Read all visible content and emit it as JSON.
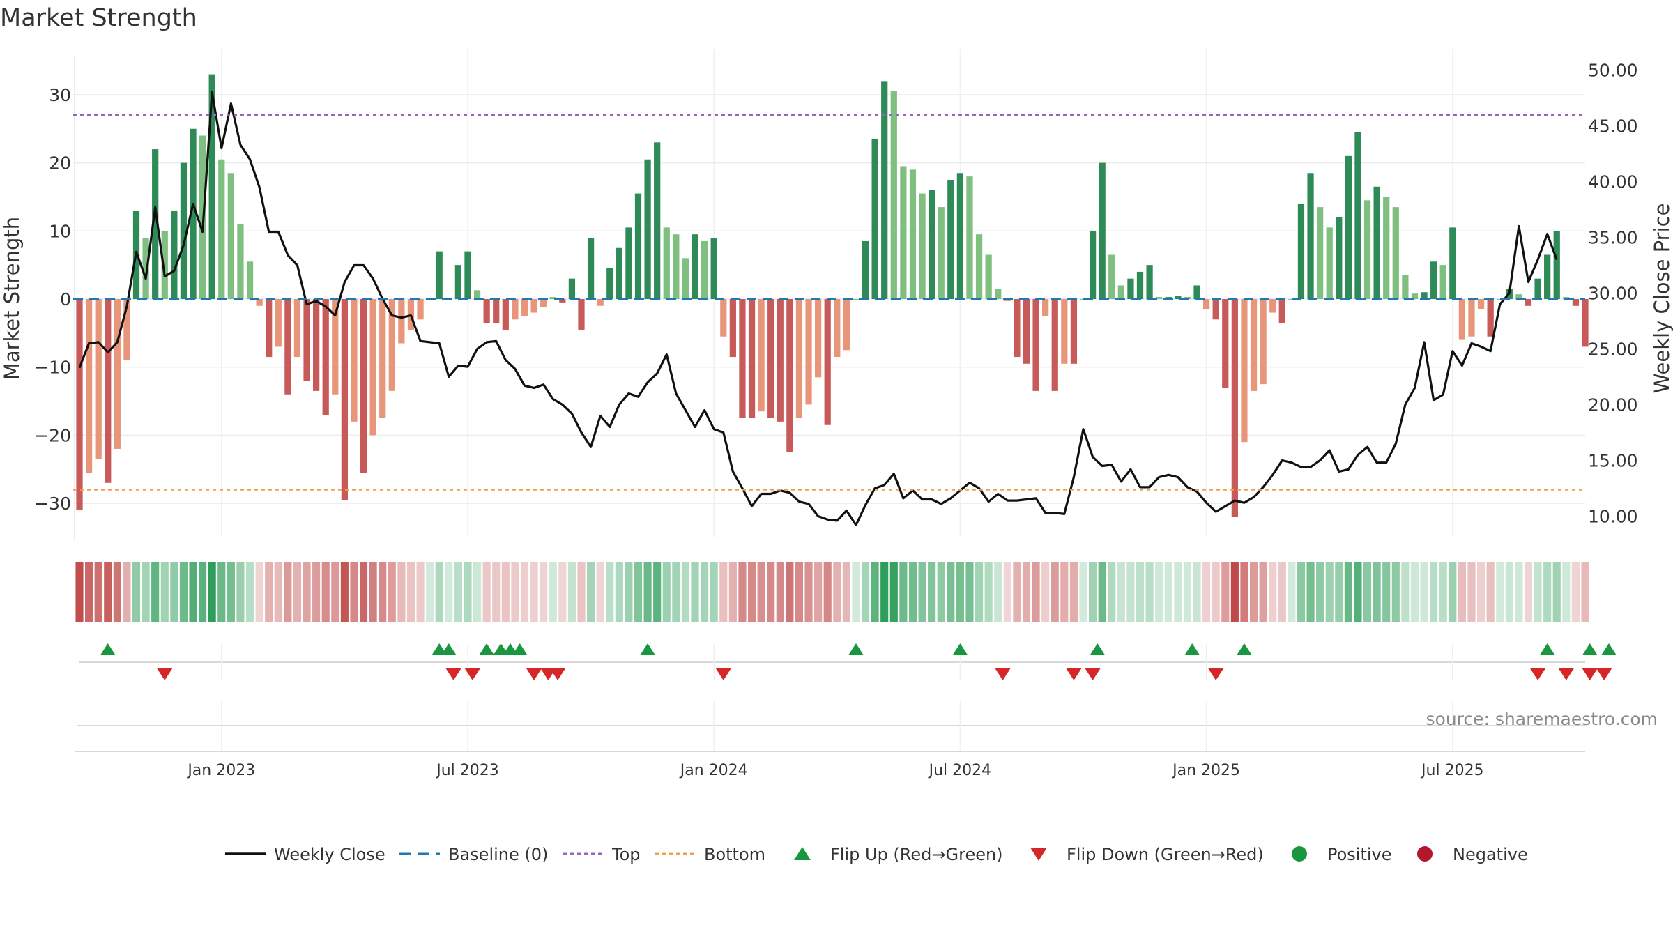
{
  "title": "Market Strength",
  "source": "source: sharemaestro.com",
  "colors": {
    "green_strong": "#2e8b57",
    "green_light": "#7fbf7f",
    "red_strong": "#c85a5a",
    "red_light": "#e8967a",
    "close_line": "#111111",
    "baseline": "#1f77b4",
    "top_line": "#9467bd",
    "bottom_line": "#f0a04b",
    "flip_up": "#1a9641",
    "flip_down": "#d62728",
    "positive": "#1a9641",
    "negative": "#b2182b"
  },
  "chart_data": {
    "type": "bar",
    "title": "Market Strength",
    "xlabel": "",
    "ylabel": "Market Strength",
    "y2label": "Weekly Close Price",
    "ylim": [
      -35,
      36
    ],
    "y2lim": [
      7.5,
      50.5
    ],
    "y_ticks": [
      30,
      20,
      10,
      0,
      -10,
      -20,
      -30
    ],
    "y_tick_labels": [
      "30",
      "20",
      "10",
      "0",
      "−10",
      "−20",
      "−30"
    ],
    "y2_ticks": [
      50,
      45,
      40,
      35,
      30,
      25,
      20,
      15,
      10
    ],
    "y2_tick_labels": [
      "50.00",
      "45.00",
      "40.00",
      "35.00",
      "30.00",
      "25.00",
      "20.00",
      "15.00",
      "10.00"
    ],
    "x_tick_labels": [
      "Jan 2023",
      "Jul 2023",
      "Jan 2024",
      "Jul 2024",
      "Jan 2025",
      "Jul 2025"
    ],
    "x_tick_weeks": [
      15,
      41,
      67,
      93,
      119,
      145
    ],
    "top_level": 27,
    "bottom_level": -28,
    "grid": true,
    "legend_position": "bottom",
    "legend": [
      "Weekly Close",
      "Baseline (0)",
      "Top",
      "Bottom",
      "Flip Up (Red→Green)",
      "Flip Down (Green→Red)",
      "Positive",
      "Negative"
    ],
    "series": [
      {
        "name": "Market Strength",
        "values": [
          -31,
          -25.5,
          -23.5,
          -27,
          -22,
          -9,
          13,
          9,
          22,
          10,
          13,
          20,
          25,
          24,
          33,
          20.5,
          18.5,
          11,
          5.5,
          -1,
          -8.5,
          -7,
          -14,
          -8.5,
          -12,
          -13.5,
          -17,
          -14,
          -29.5,
          -18,
          -25.5,
          -20,
          -17.5,
          -13.5,
          -6.5,
          -4.5,
          -3,
          0,
          7,
          0,
          5,
          7,
          1.3,
          -3.5,
          -3.5,
          -4.5,
          -3,
          -2.5,
          -2,
          -1.2,
          0.3,
          -0.5,
          3,
          -4.5,
          9,
          -1,
          4.5,
          7.5,
          10.5,
          15.5,
          20.5,
          23,
          10.5,
          9.5,
          6,
          9.5,
          8.5,
          9,
          -5.5,
          -8.5,
          -17.5,
          -17.5,
          -16.5,
          -17.5,
          -18,
          -22.5,
          -17.5,
          -15.5,
          -11.5,
          -18.5,
          -8.5,
          -7.5,
          0,
          8.5,
          23.5,
          32,
          30.5,
          19.5,
          19,
          15.5,
          16,
          13.5,
          17.5,
          18.5,
          18,
          9.5,
          6.5,
          1.5,
          -0.3,
          -8.5,
          -9.5,
          -13.5,
          -2.5,
          -13.5,
          -9.5,
          -9.5,
          0,
          10,
          20,
          6.5,
          2,
          3,
          4,
          5,
          0.3,
          0.3,
          0.5,
          0.3,
          2,
          -1.5,
          -3,
          -13,
          -32,
          -21,
          -13.5,
          -12.5,
          -2,
          -3.5,
          0,
          14,
          18.5,
          13.5,
          10.5,
          12,
          21,
          24.5,
          14.5,
          16.5,
          15,
          13.5,
          3.5,
          0.8,
          1,
          5.5,
          5,
          10.5,
          -6,
          -5.5,
          -1.5,
          -5.5,
          0,
          1.5,
          0.7,
          -1,
          3,
          6.5,
          10,
          0.3,
          -1,
          -7
        ],
        "color_rule": "green if >0, red if <0; darker when |change| grows"
      },
      {
        "name": "Weekly Close",
        "values": [
          23.3,
          25.5,
          25.6,
          24.7,
          25.6,
          28.8,
          33.7,
          31.3,
          37.7,
          31.5,
          32.0,
          34.3,
          38.0,
          35.5,
          48.0,
          43.0,
          47.0,
          43.3,
          42.0,
          39.5,
          35.5,
          35.5,
          33.4,
          32.5,
          29.0,
          29.3,
          28.8,
          28.0,
          31.0,
          32.5,
          32.5,
          31.3,
          29.5,
          28.0,
          27.8,
          28.0,
          25.7,
          25.6,
          25.5,
          22.5,
          23.5,
          23.4,
          25.0,
          25.6,
          25.7,
          24.0,
          23.2,
          21.7,
          21.5,
          21.8,
          20.5,
          20.0,
          19.2,
          17.5,
          16.2,
          19.0,
          18.0,
          20.0,
          21.0,
          20.7,
          22.0,
          22.8,
          24.5,
          21.0,
          19.5,
          18.0,
          19.5,
          17.8,
          17.5,
          14.0,
          12.5,
          10.9,
          12.0,
          12.0,
          12.3,
          12.1,
          11.3,
          11.1,
          10.0,
          9.7,
          9.6,
          10.5,
          9.2,
          11.0,
          12.5,
          12.8,
          13.8,
          11.6,
          12.3,
          11.5,
          11.5,
          11.1,
          11.6,
          12.3,
          13.0,
          12.5,
          11.3,
          12.0,
          11.4,
          11.4,
          11.5,
          11.6,
          10.3,
          10.3,
          10.2,
          13.5,
          17.8,
          15.3,
          14.5,
          14.6,
          13.1,
          14.2,
          12.6,
          12.6,
          13.5,
          13.7,
          13.5,
          12.6,
          12.2,
          11.2,
          10.4,
          10.9,
          11.4,
          11.2,
          11.7,
          12.6,
          13.7,
          15.0,
          14.8,
          14.4,
          14.4,
          15.0,
          15.9,
          14.0,
          14.2,
          15.5,
          16.2,
          14.8,
          14.8,
          16.5,
          20.0,
          21.5,
          25.6,
          20.4,
          20.9,
          24.8,
          23.5,
          25.5,
          25.2,
          24.8,
          29.0,
          30.0,
          36.0,
          31.0,
          33.0,
          35.3,
          33.0
        ]
      }
    ],
    "flip_up_weeks": [
      3,
      38,
      39,
      43,
      44.5,
      45.5,
      46.5,
      60,
      82,
      93,
      107.5,
      117.5,
      123,
      155,
      159.5,
      161.5
    ],
    "flip_down_weeks": [
      9,
      39.5,
      41.5,
      48,
      49.5,
      50.5,
      68,
      97.5,
      105,
      107,
      120,
      154,
      157,
      159.5,
      161
    ],
    "strength_strip": "one colored cell per week; green shades for positive strength, red shades for negative, intensity by magnitude"
  }
}
